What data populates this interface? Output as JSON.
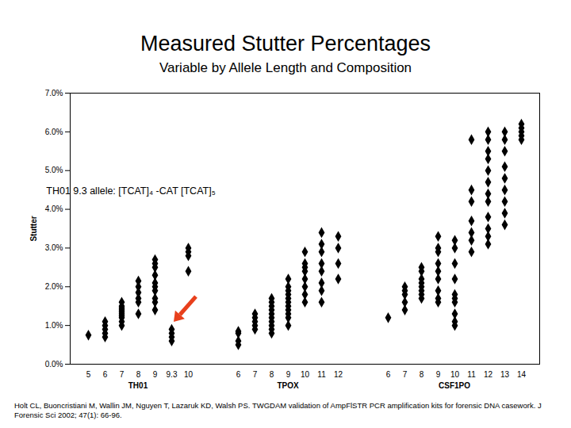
{
  "chart_data": {
    "type": "scatter",
    "title": "Measured Stutter Percentages",
    "subtitle": "Variable by Allele Length and Composition",
    "y_label": "Stutter",
    "ylim": [
      0,
      7
    ],
    "yticks": [
      {
        "value": 0,
        "label": "0.0%"
      },
      {
        "value": 1,
        "label": "1.0%"
      },
      {
        "value": 2,
        "label": "2.0%"
      },
      {
        "value": 3,
        "label": "3.0%"
      },
      {
        "value": 4,
        "label": "4.0%"
      },
      {
        "value": 5,
        "label": "5.0%"
      },
      {
        "value": 6,
        "label": "6.0%"
      },
      {
        "value": 7,
        "label": "7.0%"
      }
    ],
    "marker": "diamond",
    "color": "#000000",
    "groups": [
      {
        "name": "TH01",
        "categories": [
          "5",
          "6",
          "7",
          "8",
          "9",
          "9.3",
          "10"
        ],
        "values": [
          [
            0.75
          ],
          [
            0.7,
            0.8,
            0.9,
            1.0,
            1.1
          ],
          [
            1.0,
            1.1,
            1.2,
            1.25,
            1.3,
            1.35,
            1.4,
            1.45,
            1.5,
            1.6
          ],
          [
            1.3,
            1.6,
            1.7,
            1.85,
            2.0,
            2.15
          ],
          [
            1.4,
            1.6,
            1.7,
            1.9,
            2.0,
            2.1,
            2.3,
            2.5,
            2.6,
            2.7
          ],
          [
            0.6,
            0.7,
            0.8,
            0.9
          ],
          [
            2.4,
            2.8,
            2.9,
            3.0
          ]
        ],
        "arrow": "9.3"
      },
      {
        "name": "TPOX",
        "categories": [
          "6",
          "7",
          "8",
          "9",
          "10",
          "11",
          "12"
        ],
        "values": [
          [
            0.5,
            0.6,
            0.8,
            0.85
          ],
          [
            0.9,
            1.0,
            1.1,
            1.2,
            1.3
          ],
          [
            0.8,
            0.9,
            1.0,
            1.1,
            1.2,
            1.3,
            1.4,
            1.5,
            1.6,
            1.7
          ],
          [
            1.0,
            1.2,
            1.3,
            1.4,
            1.5,
            1.6,
            1.7,
            1.8,
            1.9,
            2.0,
            2.2
          ],
          [
            1.6,
            1.8,
            2.0,
            2.2,
            2.4,
            2.5,
            2.6,
            2.9
          ],
          [
            1.6,
            1.9,
            2.1,
            2.4,
            2.6,
            2.9,
            3.1,
            3.4
          ],
          [
            2.2,
            2.6,
            3.0,
            3.3
          ]
        ]
      },
      {
        "name": "CSF1PO",
        "categories": [
          "6",
          "7",
          "8",
          "9",
          "10",
          "11",
          "12",
          "13",
          "14"
        ],
        "values": [
          [
            1.2
          ],
          [
            1.4,
            1.6,
            1.8,
            1.9,
            2.0
          ],
          [
            1.7,
            1.8,
            1.9,
            2.0,
            2.1,
            2.2,
            2.4,
            2.5
          ],
          [
            1.6,
            1.7,
            1.9,
            2.2,
            2.4,
            2.6,
            2.9,
            3.0,
            3.3
          ],
          [
            1.0,
            1.1,
            1.3,
            1.6,
            1.7,
            1.8,
            2.2,
            2.6,
            3.0,
            3.2
          ],
          [
            2.9,
            3.2,
            3.4,
            3.7,
            4.2,
            4.5,
            5.8
          ],
          [
            3.1,
            3.3,
            3.5,
            3.8,
            4.2,
            4.4,
            4.7,
            5.0,
            5.3,
            5.5,
            5.8,
            6.0
          ],
          [
            3.6,
            3.9,
            4.2,
            4.5,
            4.8,
            5.1,
            5.5,
            5.8,
            6.0
          ],
          [
            5.8,
            5.9,
            6.0,
            6.1,
            6.2
          ]
        ]
      }
    ],
    "annotation": "TH01 9.3 allele: [TCAT]₄ -CAT [TCAT]₅",
    "caption": "Holt CL, Buoncristiani M, Wallin JM, Nguyen T, Lazaruk KD, Walsh PS. TWGDAM validation of AmpFlSTR PCR amplification kits for forensic DNA casework. J Forensic Sci 2002; 47(1): 66-96."
  }
}
